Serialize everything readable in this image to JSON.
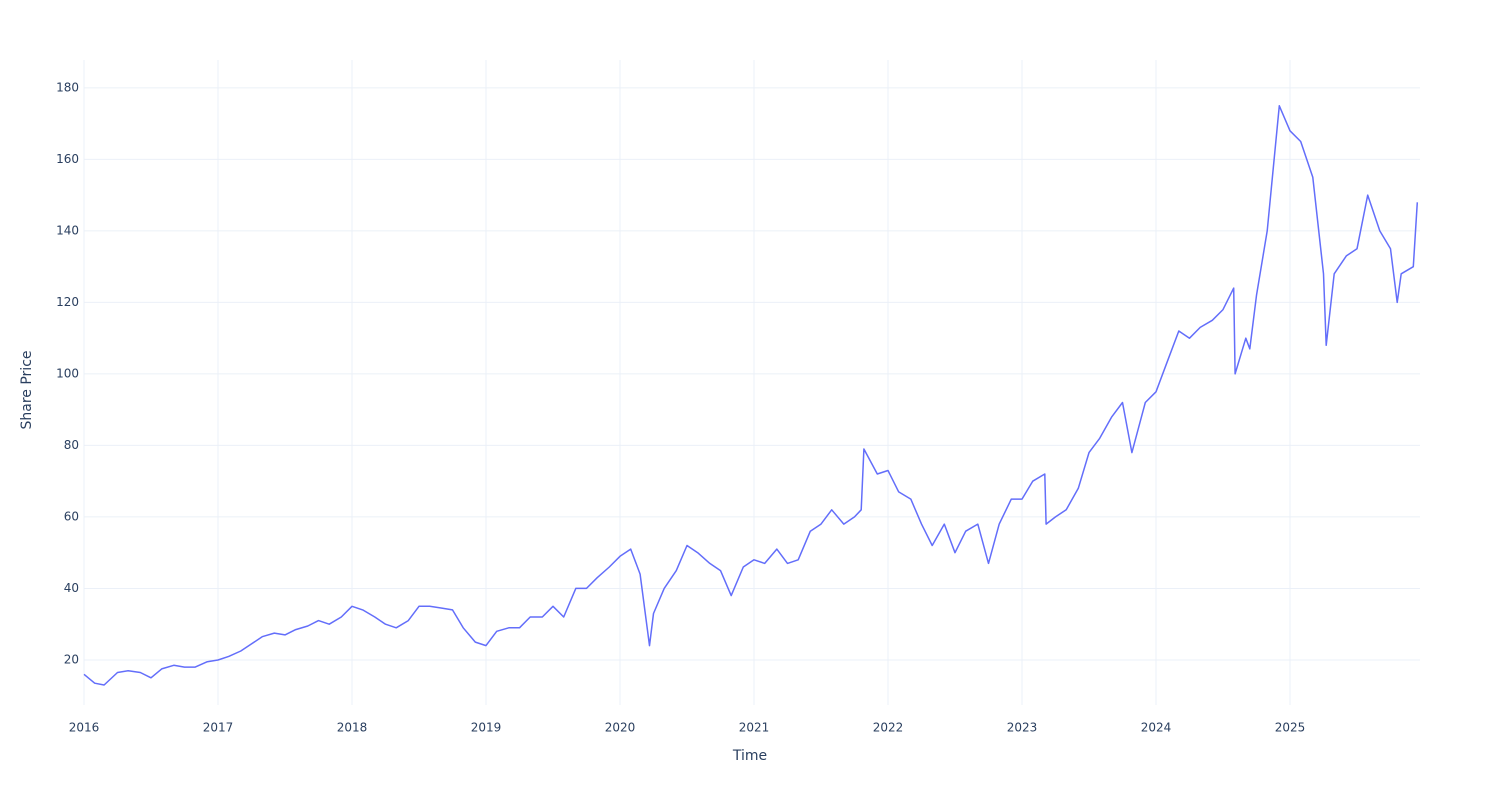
{
  "chart_data": {
    "type": "line",
    "x_label": "Time",
    "y_label": "Share Price",
    "xlim": [
      2016,
      2025.97
    ],
    "xticks": [
      2016,
      2017,
      2018,
      2019,
      2020,
      2021,
      2022,
      2023,
      2024,
      2025
    ],
    "ylim": [
      7.4,
      187.8
    ],
    "yticks": [
      20,
      40,
      60,
      80,
      100,
      120,
      140,
      160,
      180
    ],
    "grid": true,
    "series": [
      {
        "color": "#636efa",
        "x": [
          2016.0,
          2016.08,
          2016.15,
          2016.25,
          2016.33,
          2016.42,
          2016.5,
          2016.58,
          2016.67,
          2016.75,
          2016.83,
          2016.92,
          2017.0,
          2017.08,
          2017.17,
          2017.25,
          2017.33,
          2017.42,
          2017.5,
          2017.58,
          2017.67,
          2017.75,
          2017.83,
          2017.92,
          2018.0,
          2018.08,
          2018.17,
          2018.25,
          2018.33,
          2018.42,
          2018.5,
          2018.58,
          2018.67,
          2018.75,
          2018.83,
          2018.92,
          2019.0,
          2019.08,
          2019.17,
          2019.25,
          2019.33,
          2019.42,
          2019.5,
          2019.58,
          2019.67,
          2019.75,
          2019.83,
          2019.92,
          2020.0,
          2020.08,
          2020.15,
          2020.22,
          2020.25,
          2020.33,
          2020.42,
          2020.5,
          2020.58,
          2020.67,
          2020.75,
          2020.83,
          2020.92,
          2021.0,
          2021.08,
          2021.17,
          2021.25,
          2021.33,
          2021.42,
          2021.5,
          2021.58,
          2021.67,
          2021.75,
          2021.8,
          2021.82,
          2021.92,
          2022.0,
          2022.08,
          2022.17,
          2022.25,
          2022.33,
          2022.42,
          2022.5,
          2022.58,
          2022.67,
          2022.75,
          2022.83,
          2022.92,
          2023.0,
          2023.08,
          2023.17,
          2023.18,
          2023.25,
          2023.33,
          2023.42,
          2023.5,
          2023.58,
          2023.67,
          2023.75,
          2023.82,
          2023.92,
          2024.0,
          2024.08,
          2024.17,
          2024.25,
          2024.33,
          2024.42,
          2024.5,
          2024.58,
          2024.59,
          2024.67,
          2024.7,
          2024.75,
          2024.83,
          2024.92,
          2025.0,
          2025.08,
          2025.17,
          2025.25,
          2025.27,
          2025.33,
          2025.42,
          2025.5,
          2025.58,
          2025.67,
          2025.75,
          2025.8,
          2025.83,
          2025.92,
          2025.95
        ],
        "values": [
          16,
          13.5,
          13,
          16.5,
          17,
          16.5,
          15,
          17.5,
          18.5,
          18,
          18,
          19.5,
          20,
          21,
          22.5,
          24.5,
          26.5,
          27.5,
          27,
          28.5,
          29.5,
          31,
          30,
          32,
          35,
          34,
          32,
          30,
          29,
          31,
          35,
          35,
          34.5,
          34,
          29,
          25,
          24,
          28,
          29,
          29,
          32,
          32,
          35,
          32,
          40,
          40,
          43,
          46,
          49,
          51,
          44,
          24,
          33,
          40,
          45,
          52,
          50,
          47,
          45,
          38,
          46,
          48,
          47,
          51,
          47,
          48,
          56,
          58,
          62,
          58,
          60,
          62,
          79,
          72,
          73,
          67,
          65,
          58,
          52,
          58,
          50,
          56,
          58,
          47,
          58,
          65,
          65,
          70,
          72,
          58,
          60,
          62,
          68,
          78,
          82,
          88,
          92,
          78,
          92,
          95,
          103,
          112,
          110,
          113,
          115,
          118,
          124,
          100,
          110,
          107,
          122,
          140,
          175,
          168,
          165,
          155,
          128,
          108,
          128,
          133,
          135,
          150,
          140,
          135,
          120,
          128,
          130,
          148
        ]
      }
    ]
  }
}
